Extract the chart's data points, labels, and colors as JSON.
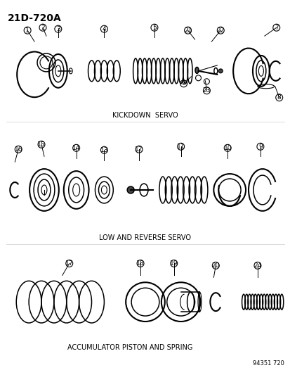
{
  "title_label": "21D-720A",
  "section1_label": "KICKDOWN  SERVO",
  "section2_label": "LOW AND REVERSE SERVO",
  "section3_label": "ACCUMULATOR PISTON AND SPRING",
  "part_number": "94351 720",
  "bg_color": "#ffffff",
  "line_color": "#000000",
  "font_family": "DejaVu Sans",
  "title_fontsize": 10,
  "label_fontsize": 7,
  "part_label_fontsize": 6.5,
  "fig_w": 4.14,
  "fig_h": 5.33,
  "dpi": 100
}
